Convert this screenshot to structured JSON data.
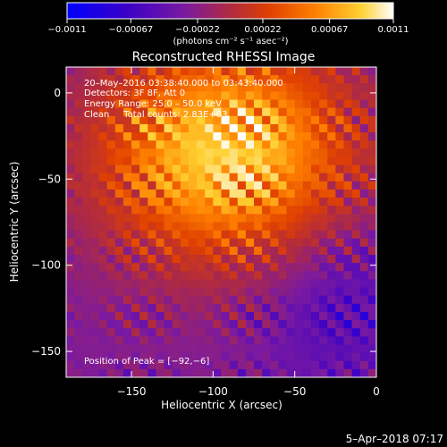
{
  "chart_data": {
    "type": "heatmap",
    "title": "Reconstructed RHESSI Image",
    "xlabel": "Heliocentric X (arcsec)",
    "ylabel": "Heliocentric Y (arcsec)",
    "xlim": [
      -190,
      0
    ],
    "ylim": [
      -165,
      15
    ],
    "x_ticks": [
      -150,
      -100,
      -50,
      0
    ],
    "x_tick_labels": [
      "−150",
      "−100",
      "−50",
      "0"
    ],
    "y_ticks": [
      -150,
      -100,
      -50,
      0
    ],
    "y_tick_labels": [
      "−150",
      "−100",
      "−50",
      "0"
    ],
    "colorbar": {
      "ticks": [
        -0.0011,
        -0.00067,
        -0.00022,
        0.00022,
        0.00067,
        0.0011
      ],
      "tick_labels": [
        "−0.0011",
        "−0.00067",
        "−0.00022",
        "0.00022",
        "0.00067",
        "0.0011"
      ],
      "units_label": "(photons cm⁻² s⁻¹ asec⁻²)",
      "colors": [
        "#0000ff",
        "#3a00c8",
        "#7a1aa0",
        "#b02a40",
        "#e04000",
        "#ff8000",
        "#ffd030",
        "#ffffff"
      ]
    },
    "peak_position": [
      -92,
      -6
    ],
    "annotations": [
      "20–May–2016 03:38:40.000 to 03:43:40.000",
      "Detectors: 3F 8F, Att 0",
      "Energy Range: 25.0 – 50.0 keV",
      "Clean     Total counts: 2.83E+03",
      "Position of Peak = [−92,−6]"
    ]
  },
  "timestamp": "5–Apr–2018 07:17"
}
